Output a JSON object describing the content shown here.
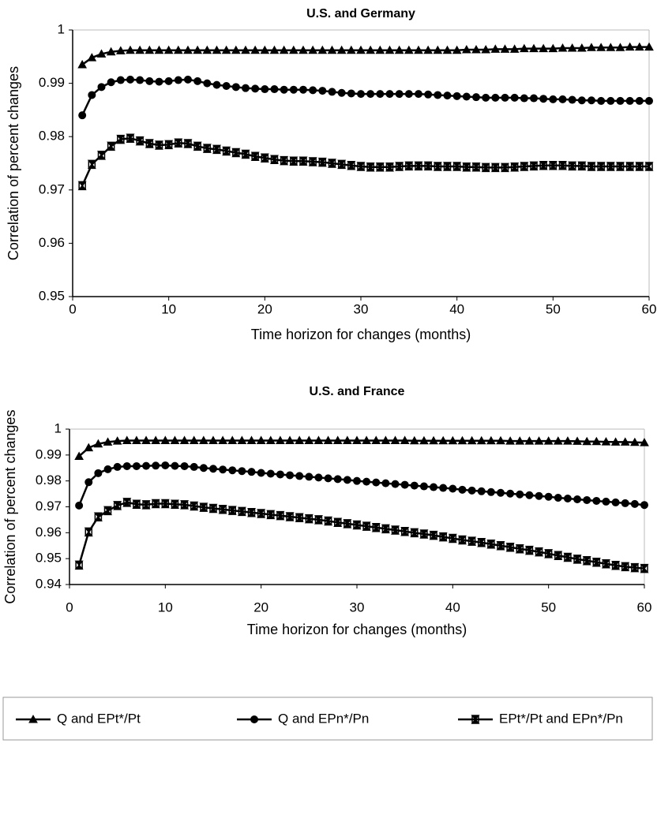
{
  "chart_data": [
    {
      "type": "line",
      "title": "U.S. and Germany",
      "xlabel": "Time horizon for changes (months)",
      "ylabel": "Correlation of percent changes",
      "x": [
        1,
        2,
        3,
        4,
        5,
        6,
        7,
        8,
        9,
        10,
        11,
        12,
        13,
        14,
        15,
        16,
        17,
        18,
        19,
        20,
        21,
        22,
        23,
        24,
        25,
        26,
        27,
        28,
        29,
        30,
        31,
        32,
        33,
        34,
        35,
        36,
        37,
        38,
        39,
        40,
        41,
        42,
        43,
        44,
        45,
        46,
        47,
        48,
        49,
        50,
        51,
        52,
        53,
        54,
        55,
        56,
        57,
        58,
        59,
        60
      ],
      "xlim": [
        0,
        60
      ],
      "xticks": [
        0,
        10,
        20,
        30,
        40,
        50,
        60
      ],
      "ylim": [
        0.95,
        1
      ],
      "yticks": [
        0.95,
        0.96,
        0.97,
        0.98,
        0.99,
        1
      ],
      "series": [
        {
          "name": "Q and EPt*/Pt",
          "color": "#000000",
          "marker": "triangle",
          "values": [
            0.9935,
            0.9948,
            0.9955,
            0.9959,
            0.9961,
            0.9962,
            0.9962,
            0.9962,
            0.9962,
            0.9962,
            0.9962,
            0.9962,
            0.9962,
            0.9962,
            0.9962,
            0.9962,
            0.9962,
            0.9962,
            0.9962,
            0.9962,
            0.9962,
            0.9962,
            0.9962,
            0.9962,
            0.9962,
            0.9962,
            0.9962,
            0.9962,
            0.9962,
            0.9962,
            0.9962,
            0.9962,
            0.9962,
            0.9962,
            0.9962,
            0.9962,
            0.9962,
            0.9962,
            0.9962,
            0.9962,
            0.9963,
            0.9963,
            0.9963,
            0.9964,
            0.9964,
            0.9964,
            0.9965,
            0.9965,
            0.9965,
            0.9965,
            0.9966,
            0.9966,
            0.9966,
            0.9967,
            0.9967,
            0.9967,
            0.9967,
            0.9968,
            0.9968,
            0.9968
          ]
        },
        {
          "name": "Q and EPn*/Pn",
          "color": "#000000",
          "marker": "circle",
          "values": [
            0.984,
            0.9878,
            0.9893,
            0.9902,
            0.9906,
            0.9907,
            0.9906,
            0.9904,
            0.9903,
            0.9904,
            0.9906,
            0.9907,
            0.9904,
            0.99,
            0.9897,
            0.9895,
            0.9893,
            0.9891,
            0.989,
            0.9889,
            0.9889,
            0.9888,
            0.9888,
            0.9888,
            0.9887,
            0.9886,
            0.9884,
            0.9882,
            0.9881,
            0.988,
            0.988,
            0.988,
            0.988,
            0.988,
            0.988,
            0.988,
            0.9879,
            0.9878,
            0.9877,
            0.9876,
            0.9875,
            0.9874,
            0.9873,
            0.9873,
            0.9873,
            0.9873,
            0.9872,
            0.9872,
            0.9871,
            0.987,
            0.987,
            0.9869,
            0.9868,
            0.9868,
            0.9867,
            0.9867,
            0.9867,
            0.9867,
            0.9867,
            0.9867
          ]
        },
        {
          "name": "EPt*/Pt and EPn*/Pn",
          "color": "#000000",
          "marker": "bar-x",
          "values": [
            0.9708,
            0.9748,
            0.9765,
            0.9782,
            0.9795,
            0.9797,
            0.9792,
            0.9787,
            0.9784,
            0.9785,
            0.9788,
            0.9787,
            0.9782,
            0.9778,
            0.9776,
            0.9773,
            0.977,
            0.9767,
            0.9763,
            0.976,
            0.9757,
            0.9755,
            0.9754,
            0.9754,
            0.9753,
            0.9752,
            0.975,
            0.9748,
            0.9746,
            0.9744,
            0.9743,
            0.9743,
            0.9743,
            0.9744,
            0.9745,
            0.9745,
            0.9745,
            0.9744,
            0.9744,
            0.9744,
            0.9743,
            0.9743,
            0.9742,
            0.9742,
            0.9742,
            0.9743,
            0.9744,
            0.9745,
            0.9746,
            0.9746,
            0.9746,
            0.9745,
            0.9745,
            0.9744,
            0.9744,
            0.9744,
            0.9744,
            0.9744,
            0.9744,
            0.9744
          ]
        }
      ]
    },
    {
      "type": "line",
      "title": "U.S. and France",
      "xlabel": "Time horizon for changes (months)",
      "ylabel": "Correlation of percent changes",
      "x": [
        1,
        2,
        3,
        4,
        5,
        6,
        7,
        8,
        9,
        10,
        11,
        12,
        13,
        14,
        15,
        16,
        17,
        18,
        19,
        20,
        21,
        22,
        23,
        24,
        25,
        26,
        27,
        28,
        29,
        30,
        31,
        32,
        33,
        34,
        35,
        36,
        37,
        38,
        39,
        40,
        41,
        42,
        43,
        44,
        45,
        46,
        47,
        48,
        49,
        50,
        51,
        52,
        53,
        54,
        55,
        56,
        57,
        58,
        59,
        60
      ],
      "xlim": [
        0,
        60
      ],
      "xticks": [
        0,
        10,
        20,
        30,
        40,
        50,
        60
      ],
      "ylim": [
        0.94,
        1
      ],
      "yticks": [
        0.94,
        0.95,
        0.96,
        0.97,
        0.98,
        0.99,
        1
      ],
      "series": [
        {
          "color": "#000000",
          "marker": "triangle",
          "values": [
            0.9895,
            0.9928,
            0.9943,
            0.995,
            0.9954,
            0.9956,
            0.9956,
            0.9956,
            0.9956,
            0.9956,
            0.9956,
            0.9956,
            0.9956,
            0.9956,
            0.9956,
            0.9956,
            0.9956,
            0.9956,
            0.9956,
            0.9956,
            0.9956,
            0.9956,
            0.9956,
            0.9956,
            0.9956,
            0.9956,
            0.9956,
            0.9956,
            0.9956,
            0.9956,
            0.9956,
            0.9956,
            0.9956,
            0.9956,
            0.9956,
            0.9955,
            0.9955,
            0.9955,
            0.9955,
            0.9955,
            0.9955,
            0.9955,
            0.9955,
            0.9955,
            0.9955,
            0.9954,
            0.9954,
            0.9954,
            0.9954,
            0.9954,
            0.9954,
            0.9954,
            0.9953,
            0.9952,
            0.9952,
            0.9951,
            0.995,
            0.995,
            0.9949,
            0.9948
          ]
        },
        {
          "color": "#000000",
          "marker": "circle",
          "values": [
            0.9705,
            0.9795,
            0.983,
            0.9845,
            0.9854,
            0.9857,
            0.9857,
            0.9858,
            0.9859,
            0.986,
            0.9858,
            0.9857,
            0.9854,
            0.985,
            0.9847,
            0.9844,
            0.9841,
            0.9838,
            0.9835,
            0.9831,
            0.9828,
            0.9825,
            0.9822,
            0.9819,
            0.9816,
            0.9813,
            0.981,
            0.9807,
            0.9804,
            0.98,
            0.9797,
            0.9794,
            0.9791,
            0.9788,
            0.9785,
            0.9782,
            0.9779,
            0.9776,
            0.9773,
            0.977,
            0.9766,
            0.9763,
            0.976,
            0.9757,
            0.9754,
            0.9751,
            0.9748,
            0.9745,
            0.9742,
            0.9739,
            0.9735,
            0.9732,
            0.9729,
            0.9726,
            0.9723,
            0.972,
            0.9717,
            0.9714,
            0.9711,
            0.9707
          ]
        },
        {
          "color": "#000000",
          "marker": "bar-x",
          "values": [
            0.9475,
            0.9603,
            0.9661,
            0.9685,
            0.9705,
            0.9717,
            0.971,
            0.9708,
            0.9712,
            0.9712,
            0.971,
            0.9708,
            0.9703,
            0.9698,
            0.9694,
            0.969,
            0.9686,
            0.9682,
            0.9678,
            0.9674,
            0.967,
            0.9666,
            0.9662,
            0.9658,
            0.9654,
            0.965,
            0.9645,
            0.964,
            0.9635,
            0.963,
            0.9625,
            0.962,
            0.9615,
            0.961,
            0.9605,
            0.96,
            0.9595,
            0.959,
            0.9584,
            0.9578,
            0.9572,
            0.9567,
            0.9562,
            0.9556,
            0.955,
            0.9544,
            0.9538,
            0.9532,
            0.9526,
            0.9519,
            0.9512,
            0.9505,
            0.9498,
            0.9492,
            0.9486,
            0.948,
            0.9474,
            0.9469,
            0.9465,
            0.9462
          ]
        }
      ]
    }
  ]
}
